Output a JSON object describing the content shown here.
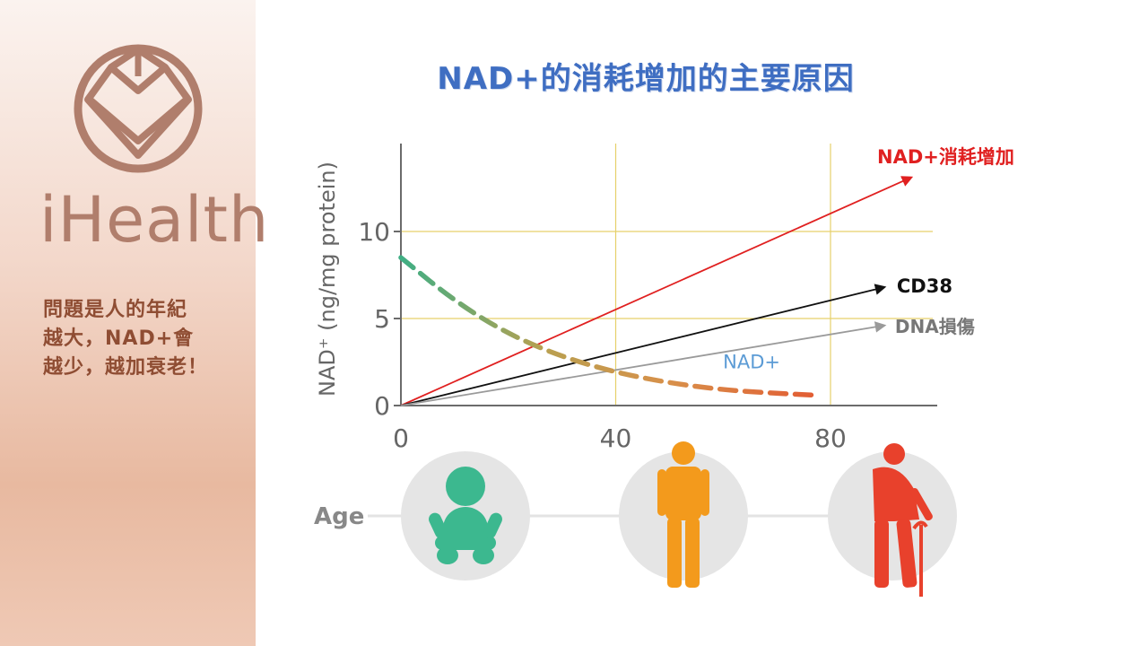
{
  "brand": {
    "name": "iHealth"
  },
  "tagline": {
    "lines": [
      "問題是人的年紀",
      "越大，NAD+會",
      "越少，越加衰老！"
    ]
  },
  "slide": {
    "title": "NAD+的消耗增加的主要原因"
  },
  "chart_data": {
    "type": "line",
    "title": "NAD+的消耗增加的主要原因",
    "ylabel": "NAD⁺ (ng/mg protein)",
    "xlabel": "Age",
    "xlim": [
      0,
      100
    ],
    "ylim": [
      0,
      15
    ],
    "x_ticks": [
      "0",
      "40",
      "80"
    ],
    "y_ticks": [
      "0",
      "5",
      "10"
    ],
    "grid": true,
    "series": [
      {
        "name": "NAD+消耗增加",
        "color": "#e02020",
        "style": "arrow",
        "x": [
          0,
          95
        ],
        "y": [
          0,
          13.1
        ]
      },
      {
        "name": "CD38",
        "color": "#111111",
        "style": "arrow",
        "x": [
          0,
          90
        ],
        "y": [
          0,
          6.8
        ]
      },
      {
        "name": "DNA損傷",
        "color": "#9a9a9a",
        "style": "arrow",
        "x": [
          0,
          90
        ],
        "y": [
          0,
          4.6
        ]
      },
      {
        "name": "NAD+",
        "color": "#e07040",
        "style": "dashed",
        "x": [
          0,
          10,
          20,
          30,
          40,
          50,
          60,
          70,
          77
        ],
        "y": [
          8.5,
          6.0,
          4.1,
          2.8,
          1.9,
          1.3,
          0.9,
          0.7,
          0.6
        ]
      }
    ],
    "age_icons": [
      {
        "age": 0,
        "label": "baby",
        "color": "#3cb88f"
      },
      {
        "age": 40,
        "label": "adult",
        "color": "#f39a1c"
      },
      {
        "age": 80,
        "label": "elderly",
        "color": "#e8412c"
      }
    ]
  }
}
